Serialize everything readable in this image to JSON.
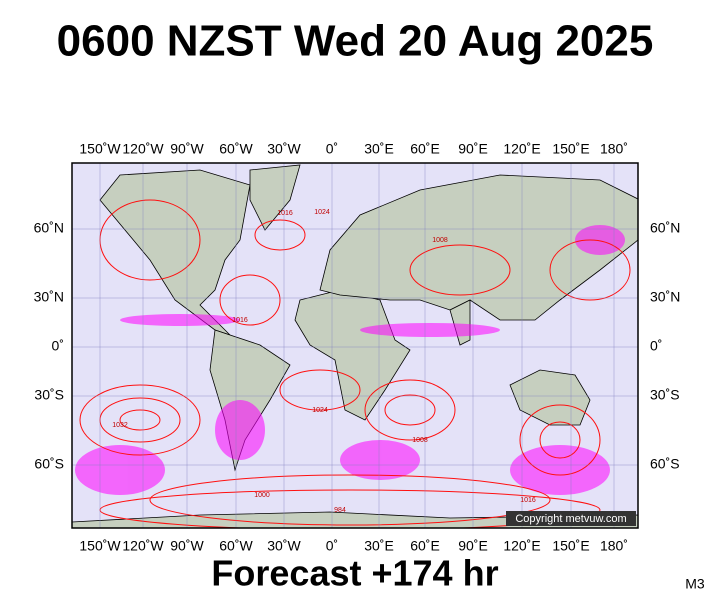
{
  "header": {
    "title": "0600 NZST Wed 20 Aug 2025"
  },
  "map": {
    "lon_labels": [
      "150˚W",
      "120˚W",
      "90˚W",
      "60˚W",
      "30˚W",
      "0˚",
      "30˚E",
      "60˚E",
      "90˚E",
      "120˚E",
      "150˚E",
      "180˚"
    ],
    "lat_labels": [
      "60˚N",
      "30˚N",
      "0˚",
      "30˚S",
      "60˚S"
    ],
    "isobar_labels": [
      "1016",
      "1024",
      "1008",
      "1016",
      "1032",
      "1024",
      "1008",
      "1000",
      "984",
      "1016"
    ],
    "copyright": "Copyright metvuw.com"
  },
  "footer": {
    "forecast": "Forecast +174 hr",
    "model": "M3"
  }
}
